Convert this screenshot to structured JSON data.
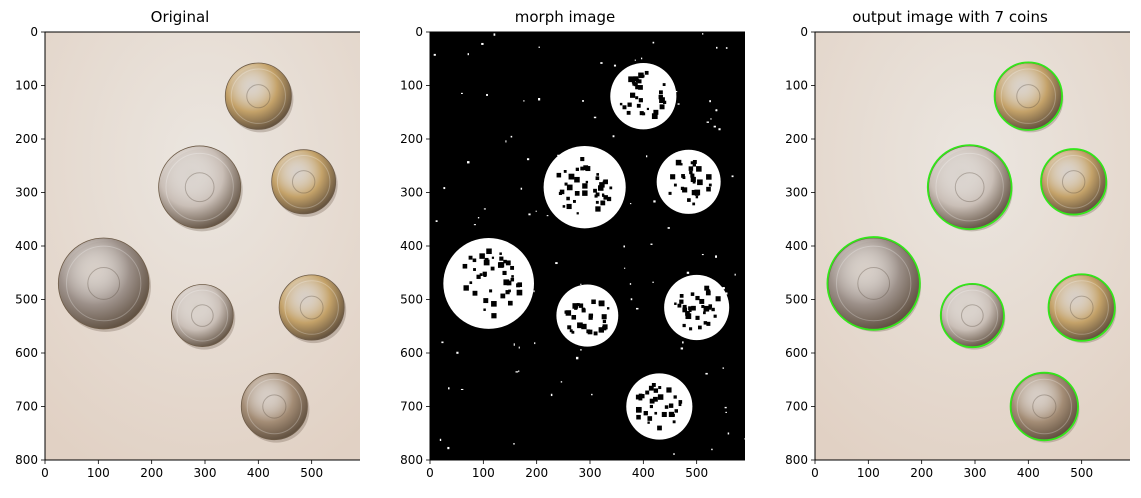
{
  "panels": [
    {
      "title": "Original",
      "kind": "photo",
      "xticks": [
        0,
        100,
        200,
        300,
        400,
        500
      ],
      "yticks": [
        0,
        100,
        200,
        300,
        400,
        500,
        600,
        700,
        800
      ]
    },
    {
      "title": "morph image",
      "kind": "binary",
      "xticks": [
        0,
        100,
        200,
        300,
        400,
        500
      ],
      "yticks": [
        0,
        100,
        200,
        300,
        400,
        500,
        600,
        700,
        800
      ]
    },
    {
      "title": "output image with 7 coins",
      "kind": "detected",
      "xticks": [
        0,
        100,
        200,
        300,
        400,
        500
      ],
      "yticks": [
        0,
        100,
        200,
        300,
        400,
        500,
        600,
        700,
        800
      ]
    }
  ],
  "image_size": {
    "width": 600,
    "height": 800
  },
  "coins": [
    {
      "cx": 400,
      "cy": 120,
      "r": 62,
      "metal": "brass"
    },
    {
      "cx": 290,
      "cy": 290,
      "r": 77,
      "metal": "silver"
    },
    {
      "cx": 485,
      "cy": 280,
      "r": 60,
      "metal": "brass"
    },
    {
      "cx": 110,
      "cy": 470,
      "r": 85,
      "metal": "grey"
    },
    {
      "cx": 295,
      "cy": 530,
      "r": 58,
      "metal": "silver"
    },
    {
      "cx": 500,
      "cy": 515,
      "r": 61,
      "metal": "brass"
    },
    {
      "cx": 430,
      "cy": 700,
      "r": 62,
      "metal": "bronze"
    }
  ],
  "colors": {
    "background_paper": "#e6dfd7",
    "detection_circle": "#33e61a",
    "brass": "#c4a269",
    "silver": "#c9beb6",
    "grey": "#9d918a",
    "bronze": "#a48d76"
  }
}
